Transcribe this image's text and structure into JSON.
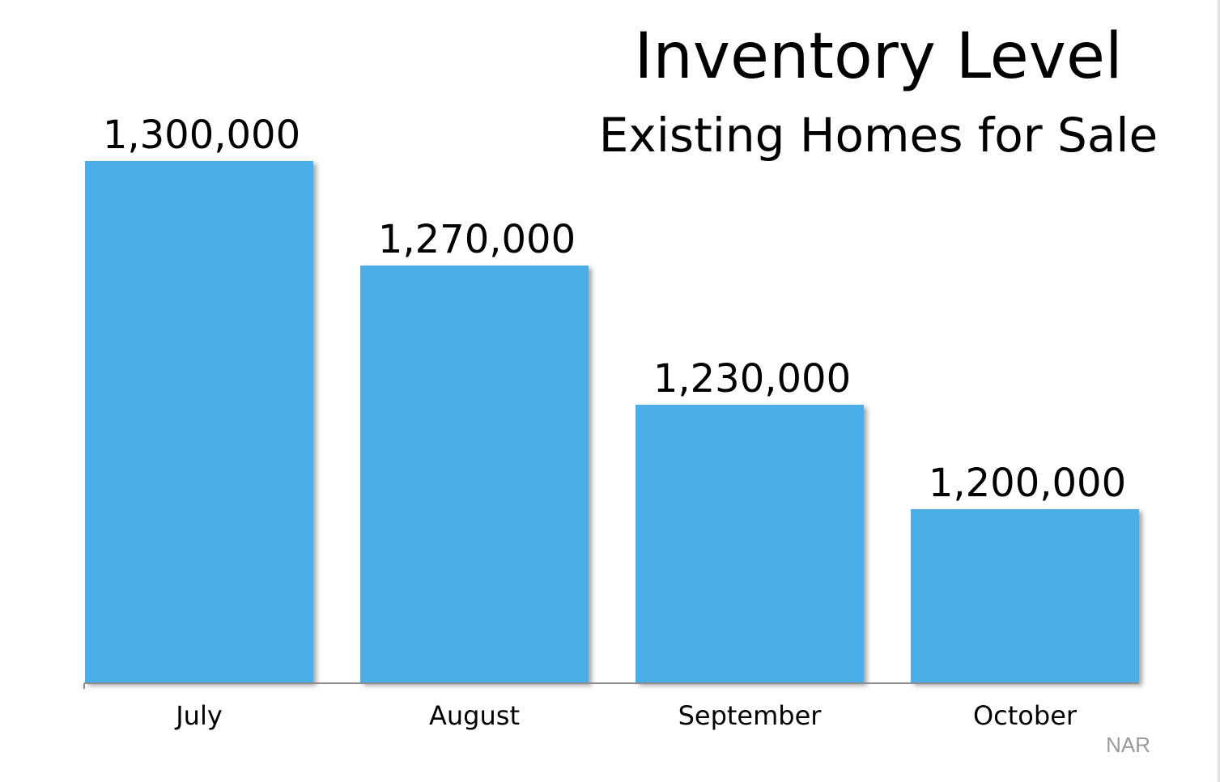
{
  "chart_data": {
    "type": "bar",
    "title": "Inventory Level",
    "subtitle": "Existing Homes for Sale",
    "categories": [
      "July",
      "August",
      "September",
      "October"
    ],
    "values": [
      1300000,
      1270000,
      1230000,
      1200000
    ],
    "value_labels": [
      "1,300,000",
      "1,270,000",
      "1,230,000",
      "1,200,000"
    ],
    "xlabel": "",
    "ylabel": "",
    "ylim": [
      0,
      1300000
    ],
    "grid": false,
    "legend": "none",
    "bar_color": "#4baee8",
    "source": "NAR"
  }
}
